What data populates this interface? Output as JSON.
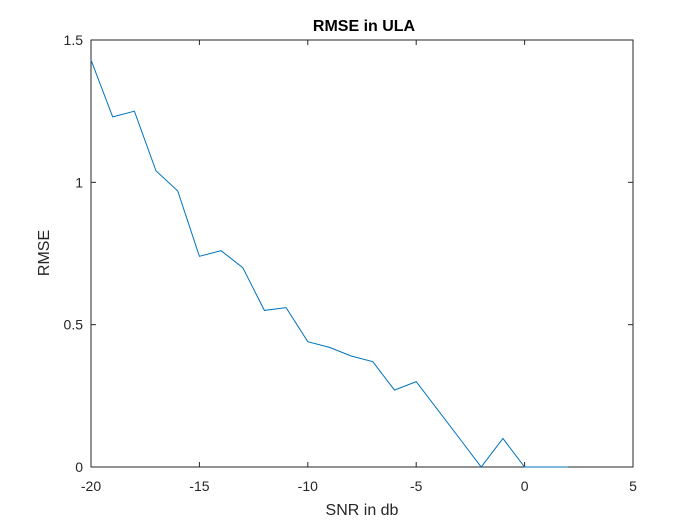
{
  "chart_data": {
    "type": "line",
    "title": "RMSE in ULA",
    "xlabel": "SNR in db",
    "ylabel": "RMSE",
    "xlim": [
      -20,
      5
    ],
    "ylim": [
      0,
      1.5
    ],
    "xticks": [
      -20,
      -15,
      -10,
      -5,
      0,
      5
    ],
    "xtick_labels": [
      "-20",
      "-15",
      "-10",
      "-5",
      "0",
      "5"
    ],
    "yticks": [
      0,
      0.5,
      1,
      1.5
    ],
    "ytick_labels": [
      "0",
      "0.5",
      "1",
      "1.5"
    ],
    "grid": false,
    "legend": "none",
    "series": [
      {
        "color": "#0072BD",
        "x": [
          -20,
          -19,
          -18,
          -17,
          -16,
          -15,
          -14,
          -13,
          -12,
          -11,
          -10,
          -9,
          -8,
          -7,
          -6,
          -5,
          -4,
          -3,
          -2,
          -1,
          0,
          1,
          2
        ],
        "y": [
          1.43,
          1.23,
          1.25,
          1.04,
          0.97,
          0.74,
          0.76,
          0.7,
          0.55,
          0.56,
          0.44,
          0.42,
          0.39,
          0.37,
          0.27,
          0.3,
          0.2,
          0.1,
          0.0,
          0.1,
          0.0,
          0.0,
          0.0
        ]
      }
    ]
  }
}
